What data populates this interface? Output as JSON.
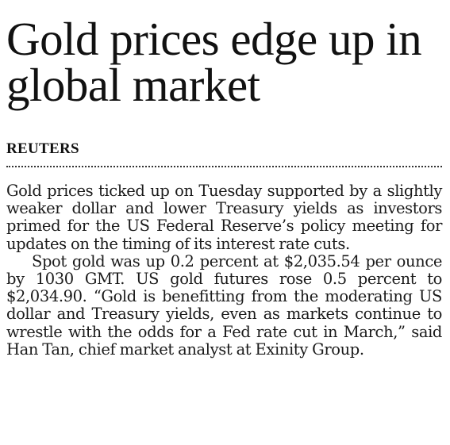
{
  "article": {
    "headline": "Gold prices edge up in global market",
    "byline": "REUTERS",
    "paragraphs": [
      "Gold prices ticked up on Tuesday supported by a slightly weaker dollar and lower Treasury yields as investors primed for the US Federal Reserve’s policy meeting for updates on the timing of its interest rate cuts.",
      "Spot gold was up 0.2 percent at $2,035.54 per ounce by 1030 GMT. US gold futures rose 0.5 percent to $2,034.90. “Gold is benefitting from the moderating US dollar and Treasury yields, even as markets continue to wrestle with the odds for a Fed rate cut in March,” said Han Tan, chief market analyst at Exinity Group."
    ]
  }
}
